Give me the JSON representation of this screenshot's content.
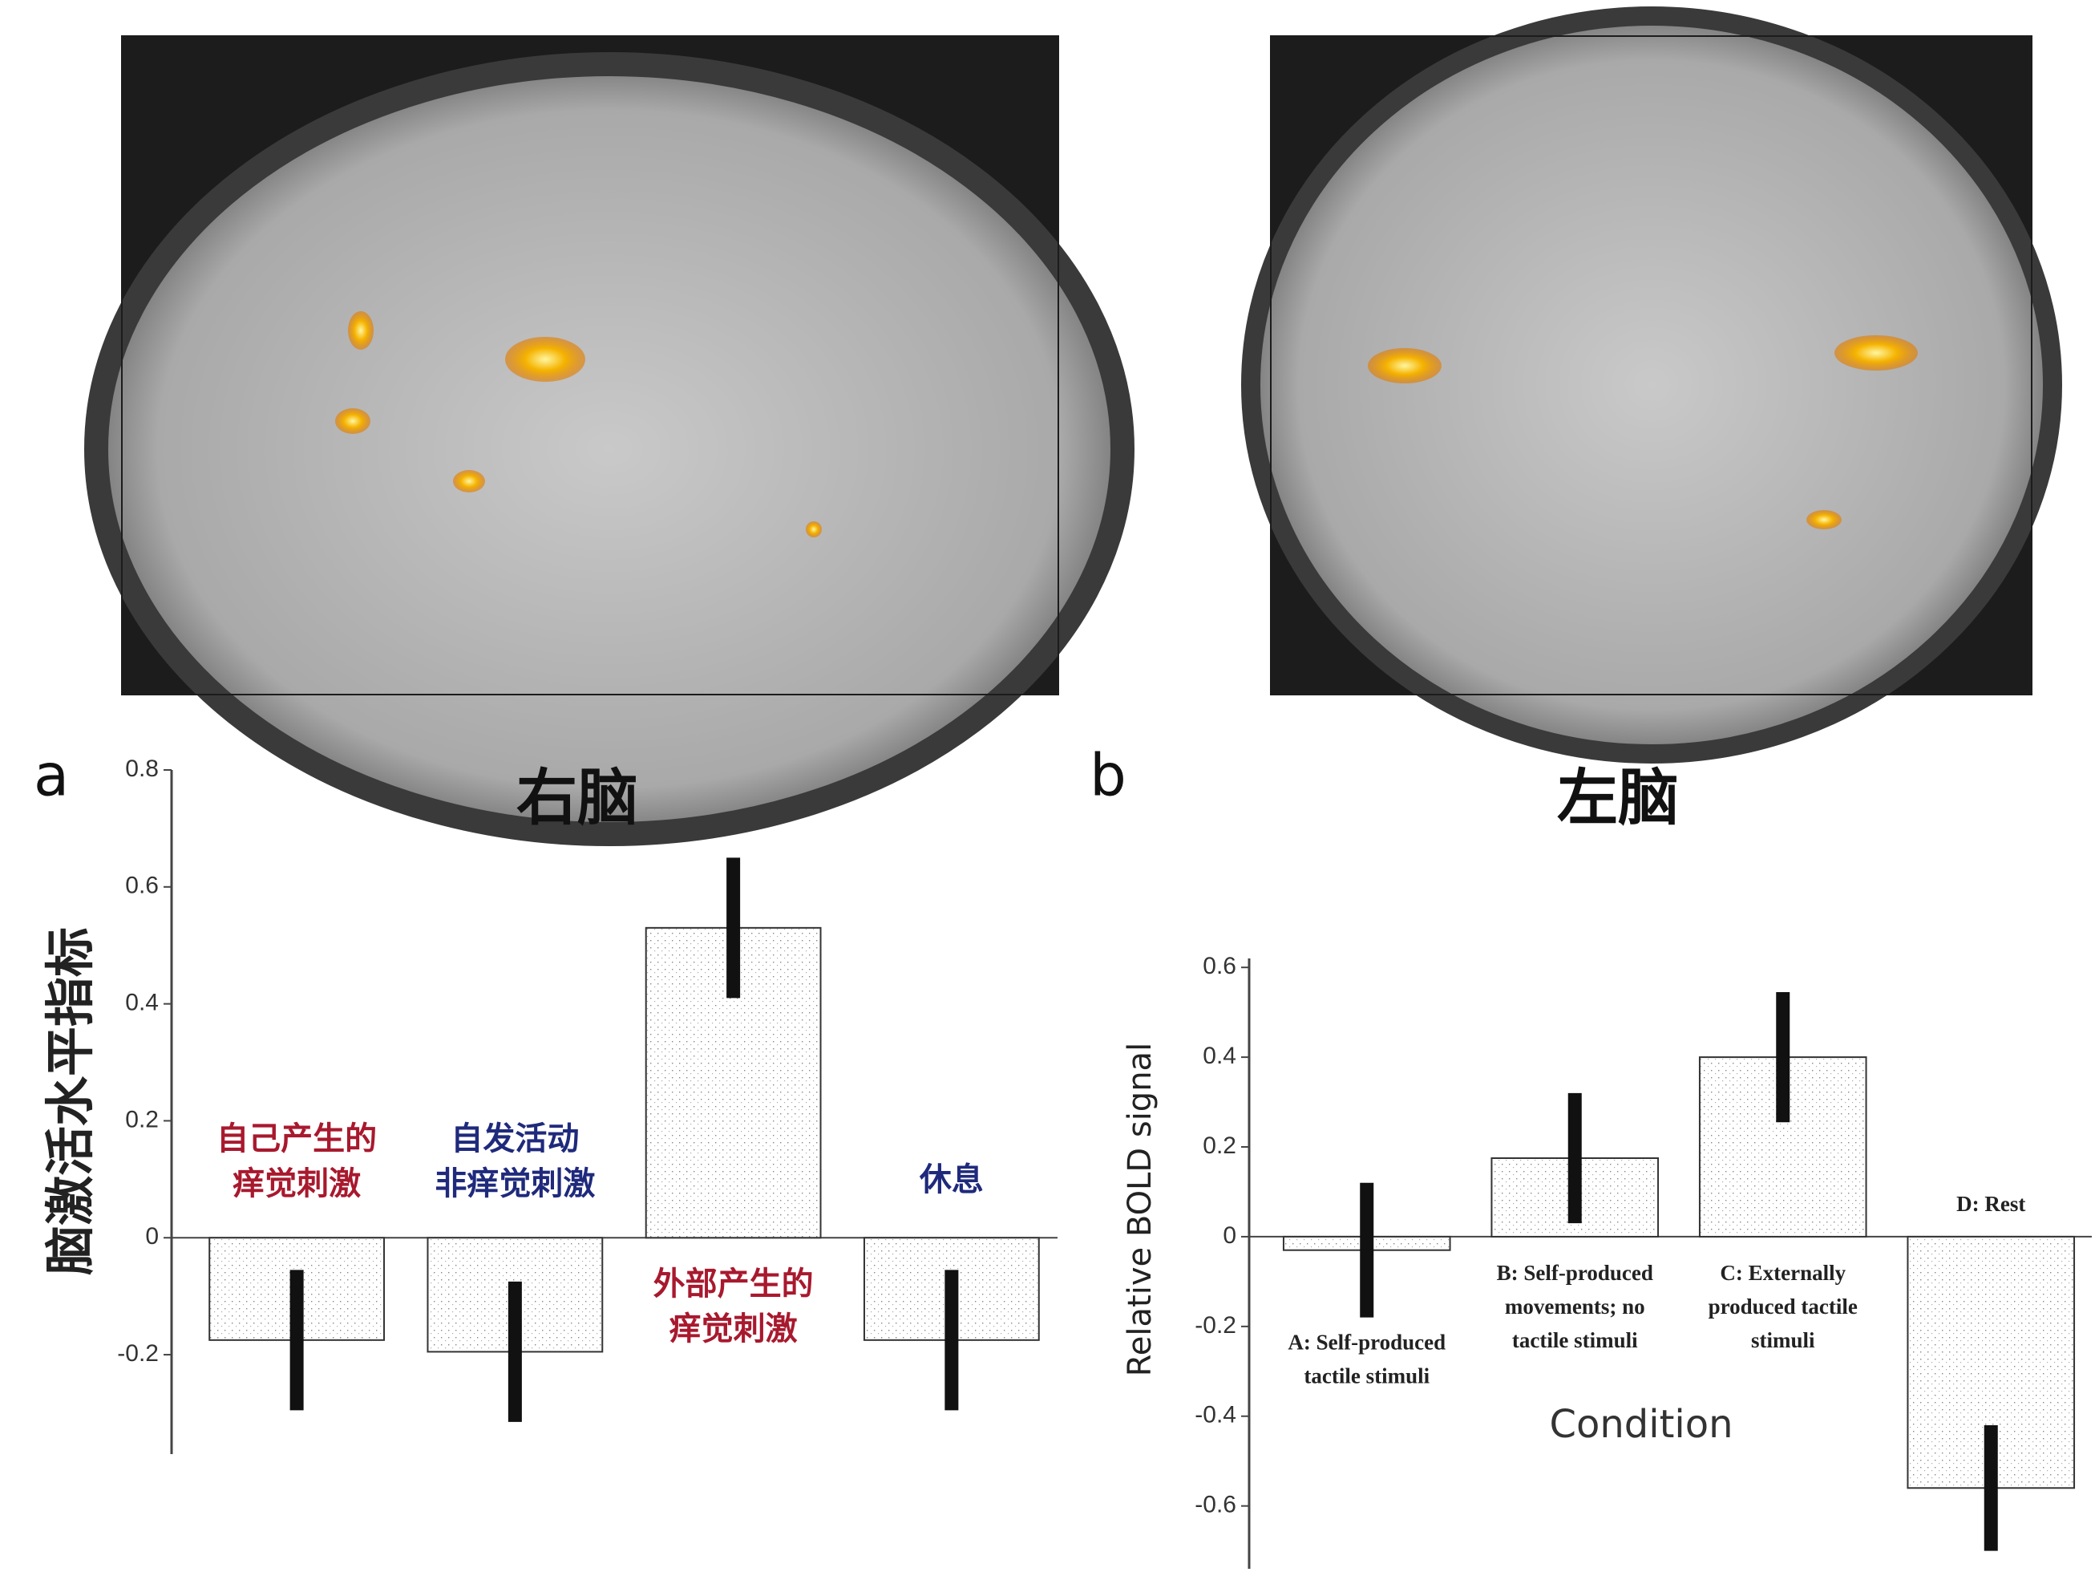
{
  "chart_data": [
    {
      "type": "bar",
      "panel_label": "a",
      "title": "右脑",
      "y_label": "脑激活水平指标",
      "categories": [
        [
          "自己产生的",
          "痒觉刺激"
        ],
        [
          "自发活动",
          "非痒觉刺激"
        ],
        [
          "外部产生的",
          "痒觉刺激"
        ],
        [
          "休息"
        ]
      ],
      "label_colors": [
        "#a8192e",
        "#1f2a7c",
        "#a8192e",
        "#1f2a7c"
      ],
      "values": [
        -0.175,
        -0.195,
        0.53,
        -0.175
      ],
      "errors": [
        0.12,
        0.12,
        0.12,
        0.12
      ],
      "color": "#ffffff",
      "ylim": [
        -0.37,
        0.8
      ],
      "yticks": [
        0.8,
        0.6,
        0.4,
        0.2,
        0,
        -0.2
      ]
    },
    {
      "type": "bar",
      "panel_label": "b",
      "title": "左脑",
      "y_label": "Relative BOLD signal",
      "x_label": "Condition",
      "categories": [
        [
          "A: Self-produced",
          "tactile stimuli"
        ],
        [
          "B: Self-produced",
          "movements; no",
          "tactile stimuli"
        ],
        [
          "C: Externally",
          "produced tactile",
          "stimuli"
        ],
        [
          "D: Rest"
        ]
      ],
      "values": [
        -0.03,
        0.175,
        0.4,
        -0.56
      ],
      "errors": [
        0.15,
        0.145,
        0.145,
        0.14
      ],
      "color": "#ffffff",
      "ylim": [
        -0.74,
        0.62
      ],
      "yticks": [
        0.6,
        0.4,
        0.2,
        0,
        -0.2,
        -0.4,
        -0.6
      ]
    }
  ]
}
